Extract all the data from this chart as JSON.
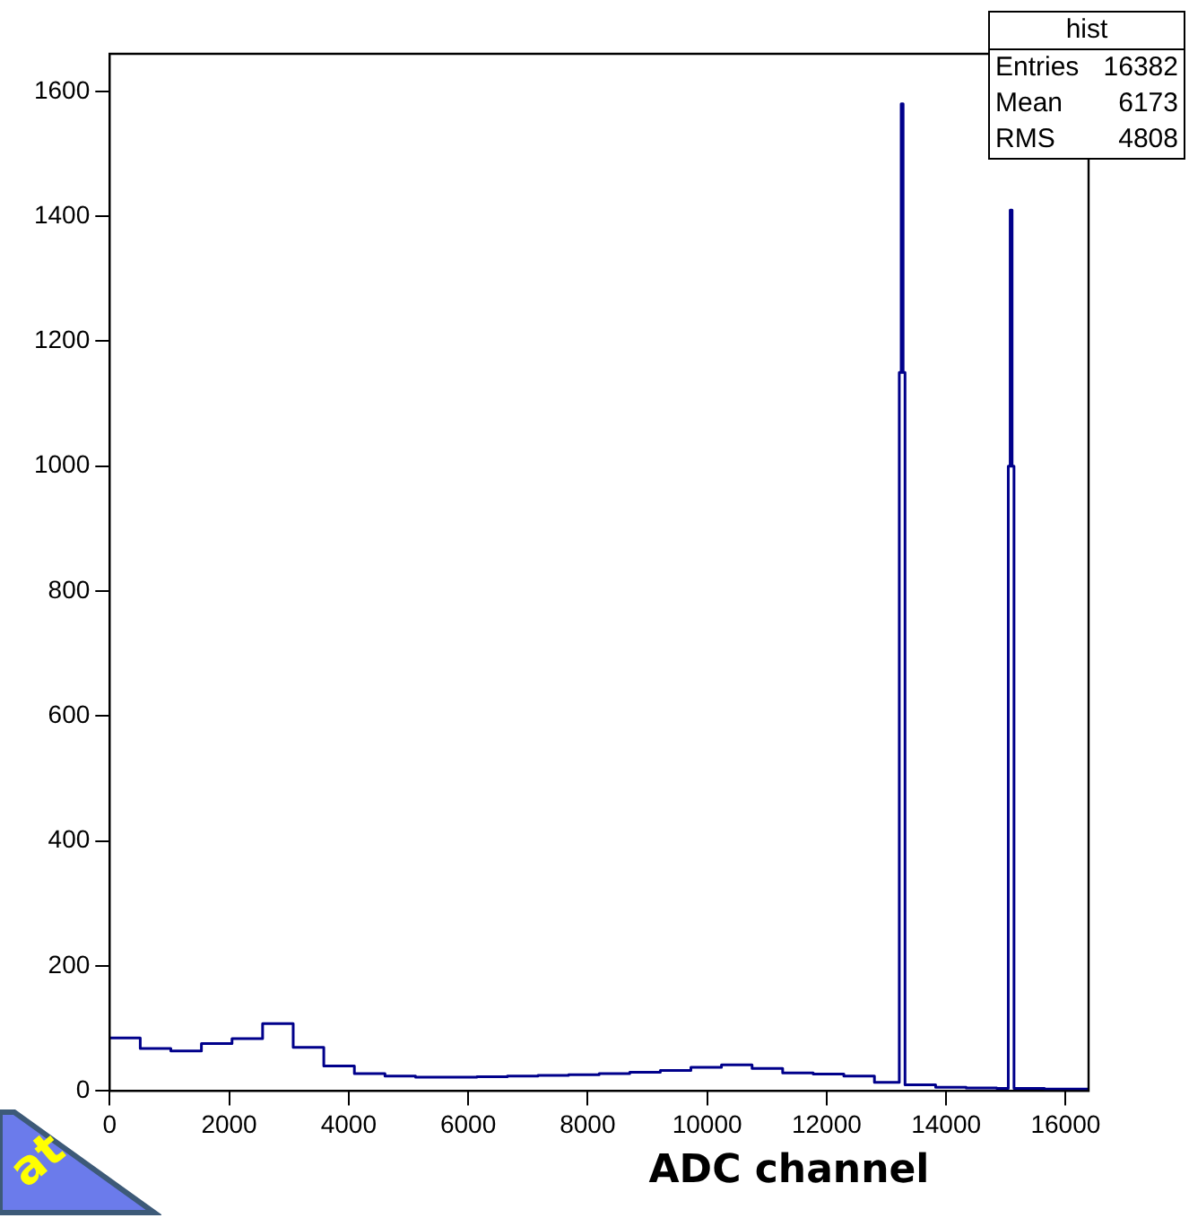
{
  "chart_data": {
    "type": "histogram",
    "xlabel": "ADC channel",
    "annotations": [
      "hist",
      "Entries",
      "16382",
      "Mean",
      "6173",
      "RMS",
      "4808",
      "at"
    ],
    "bins": [
      0,
      512,
      1024,
      1536,
      2048,
      2560,
      3072,
      3584,
      4096,
      4608,
      5120,
      5632,
      6144,
      6656,
      7168,
      7680,
      8192,
      8704,
      9216,
      9728,
      10240,
      10752,
      11264,
      11776,
      12288,
      12800,
      13216,
      13248,
      13280,
      13312,
      13824,
      14336,
      14848,
      15040,
      15072,
      15104,
      15136,
      15648,
      16384
    ],
    "values": [
      85,
      68,
      64,
      76,
      84,
      108,
      70,
      40,
      28,
      24,
      22,
      22,
      23,
      24,
      25,
      26,
      28,
      30,
      33,
      38,
      42,
      36,
      29,
      27,
      24,
      14,
      1150,
      1580,
      1150,
      10,
      6,
      5,
      4,
      1000,
      1410,
      1000,
      4,
      3
    ],
    "color": "#00008b",
    "xlim": [
      0,
      16384
    ],
    "ylim": [
      0,
      1660
    ],
    "xticks": [
      0,
      2000,
      4000,
      6000,
      8000,
      10000,
      12000,
      14000,
      16000
    ],
    "yticks": [
      0,
      200,
      400,
      600,
      800,
      1000,
      1200,
      1400,
      1600
    ],
    "grid": false,
    "legend": false
  }
}
